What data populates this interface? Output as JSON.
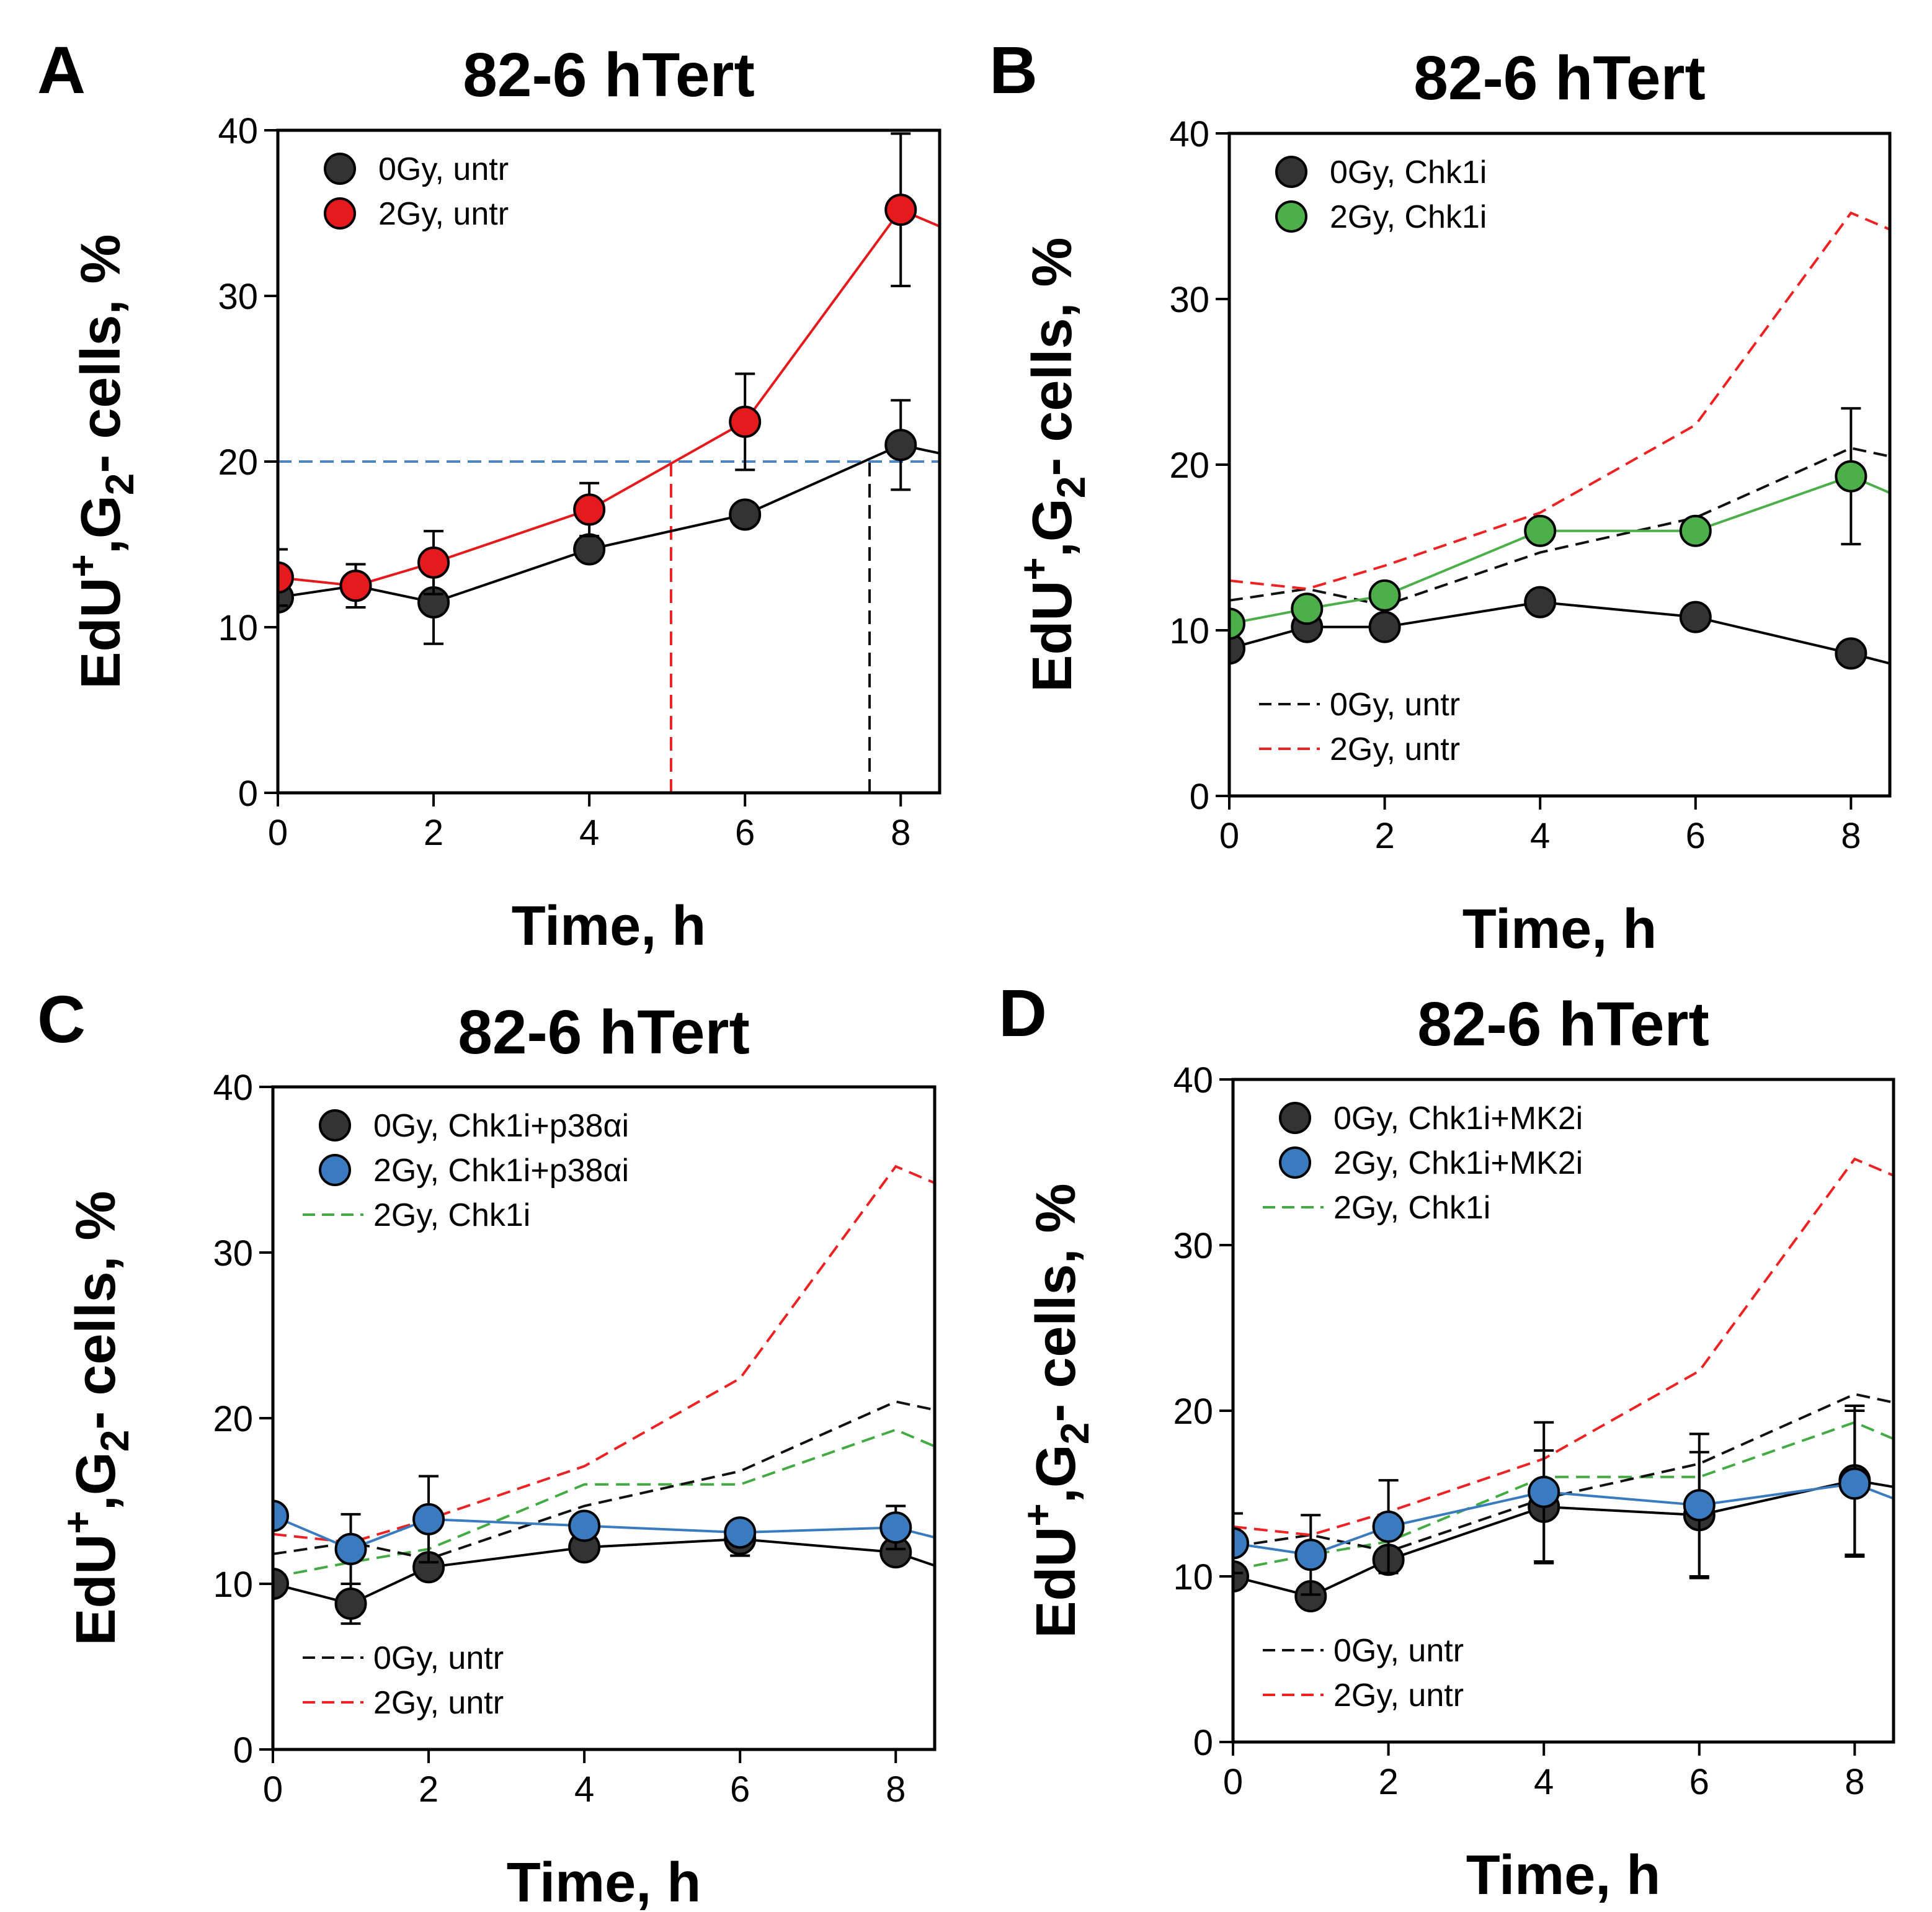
{
  "figure": {
    "colors": {
      "black_marker": "#333333",
      "red": "#e41a1c",
      "green": "#4daf4a",
      "blue": "#3a7bbf",
      "ref_black": "#111111",
      "ref_red": "#ee2222",
      "ref_green": "#44aa44",
      "guide_blue": "#4a86c5"
    }
  },
  "chart_data": [
    {
      "panel": "A",
      "type": "line",
      "title": "82-6 hTert",
      "xlabel": "Time, h",
      "ylabel_parts": [
        "EdU",
        "+",
        ",G",
        "2",
        "- cells, %"
      ],
      "xlim": [
        0,
        8.5
      ],
      "ylim": [
        0,
        40
      ],
      "xticks": [
        0,
        2,
        4,
        6,
        8
      ],
      "yticks": [
        0,
        10,
        20,
        30,
        40
      ],
      "series": [
        {
          "name": "0Gy, untr",
          "style": "marker",
          "color": "#333333",
          "x": [
            0,
            1,
            2,
            4,
            6,
            8
          ],
          "y": [
            11.8,
            12.5,
            11.5,
            14.7,
            16.8,
            21.0
          ],
          "err": [
            0,
            0,
            2.5,
            0,
            0,
            2.7
          ],
          "tail": 20.5
        },
        {
          "name": "2Gy, untr",
          "style": "marker",
          "color": "#e41a1c",
          "x": [
            0,
            1,
            2,
            4,
            6,
            8
          ],
          "y": [
            13.0,
            12.5,
            13.9,
            17.1,
            22.4,
            35.2
          ],
          "err": [
            1.7,
            1.3,
            1.9,
            1.6,
            2.9,
            4.6
          ],
          "tail": 34.2
        }
      ],
      "guides": [
        {
          "kind": "h",
          "y": 20,
          "x0": 0,
          "x1": 8.5,
          "color": "#4a86c5"
        },
        {
          "kind": "v",
          "x": 5.05,
          "y0": 0,
          "y1": 20,
          "color": "#ee2222"
        },
        {
          "kind": "v",
          "x": 7.6,
          "y0": 0,
          "y1": 20,
          "color": "#111111"
        }
      ],
      "legend_upper": [
        "0Gy, untr",
        "2Gy, untr"
      ],
      "legend_upper_loc": "top-left"
    },
    {
      "panel": "B",
      "type": "line",
      "title": "82-6 hTert",
      "xlabel": "Time, h",
      "ylabel_parts": [
        "EdU",
        "+",
        ",G",
        "2",
        "- cells, %"
      ],
      "xlim": [
        0,
        8.5
      ],
      "ylim": [
        0,
        40
      ],
      "xticks": [
        0,
        2,
        4,
        6,
        8
      ],
      "yticks": [
        0,
        10,
        20,
        30,
        40
      ],
      "series": [
        {
          "name": "0Gy, Chk1i",
          "style": "marker",
          "color": "#333333",
          "x": [
            0,
            1,
            2,
            4,
            6,
            8
          ],
          "y": [
            8.9,
            10.2,
            10.2,
            11.7,
            10.8,
            8.6
          ],
          "err": [
            0,
            0,
            0,
            0,
            0,
            0
          ],
          "tail": 8.0
        },
        {
          "name": "2Gy, Chk1i",
          "style": "marker",
          "color": "#4daf4a",
          "x": [
            0,
            1,
            2,
            4,
            6,
            8
          ],
          "y": [
            10.4,
            11.3,
            12.1,
            16.0,
            16.0,
            19.3
          ],
          "err": [
            0,
            0,
            0,
            0,
            0,
            4.1
          ],
          "tail": 18.3
        },
        {
          "name": "0Gy, untr",
          "style": "dashed",
          "color": "#111111",
          "x": [
            0,
            1,
            2,
            4,
            6,
            8
          ],
          "y": [
            11.8,
            12.5,
            11.5,
            14.7,
            16.8,
            21.0
          ],
          "tail": 20.5
        },
        {
          "name": "2Gy, untr",
          "style": "dashed",
          "color": "#ee2222",
          "x": [
            0,
            1,
            2,
            4,
            6,
            8
          ],
          "y": [
            13.0,
            12.5,
            13.9,
            17.1,
            22.4,
            35.2
          ],
          "tail": 34.2
        }
      ],
      "legend_upper": [
        "0Gy, Chk1i",
        "2Gy, Chk1i"
      ],
      "legend_upper_loc": "top-left",
      "legend_lower": [
        "0Gy, untr",
        "2Gy, untr"
      ],
      "legend_lower_loc": "bottom-left"
    },
    {
      "panel": "C",
      "type": "line",
      "title": "82-6 hTert",
      "xlabel": "Time, h",
      "ylabel_parts": [
        "EdU",
        "+",
        ",G",
        "2",
        "- cells, %"
      ],
      "xlim": [
        0,
        8.5
      ],
      "ylim": [
        0,
        40
      ],
      "xticks": [
        0,
        2,
        4,
        6,
        8
      ],
      "yticks": [
        0,
        10,
        20,
        30,
        40
      ],
      "series": [
        {
          "name": "0Gy, Chk1i+p38αi",
          "style": "marker",
          "color": "#333333",
          "x": [
            0,
            1,
            2,
            4,
            6,
            8
          ],
          "y": [
            10.0,
            8.8,
            11.0,
            12.2,
            12.7,
            11.9
          ],
          "err": [
            0,
            1.2,
            0,
            0,
            1.0,
            0
          ],
          "tail": 11.1
        },
        {
          "name": "2Gy, Chk1i+p38αi",
          "style": "marker",
          "color": "#3a7bbf",
          "x": [
            0,
            1,
            2,
            4,
            6,
            8
          ],
          "y": [
            14.1,
            12.1,
            13.9,
            13.5,
            13.1,
            13.4
          ],
          "err": [
            0,
            2.1,
            2.6,
            0,
            0,
            1.3
          ],
          "tail": 12.8
        },
        {
          "name": "2Gy, Chk1i",
          "style": "dashed",
          "color": "#44aa44",
          "x": [
            0,
            1,
            2,
            4,
            6,
            8
          ],
          "y": [
            10.4,
            11.3,
            12.1,
            16.0,
            16.0,
            19.3
          ],
          "tail": 18.3
        },
        {
          "name": "0Gy, untr",
          "style": "dashed",
          "color": "#111111",
          "x": [
            0,
            1,
            2,
            4,
            6,
            8
          ],
          "y": [
            11.8,
            12.5,
            11.5,
            14.7,
            16.8,
            21.0
          ],
          "tail": 20.5
        },
        {
          "name": "2Gy, untr",
          "style": "dashed",
          "color": "#ee2222",
          "x": [
            0,
            1,
            2,
            4,
            6,
            8
          ],
          "y": [
            13.0,
            12.5,
            13.9,
            17.1,
            22.4,
            35.2
          ],
          "tail": 34.2
        }
      ],
      "legend_upper": [
        "0Gy, Chk1i+p38αi",
        "2Gy, Chk1i+p38αi",
        "2Gy, Chk1i"
      ],
      "legend_upper_loc": "top-left",
      "legend_lower": [
        "0Gy, untr",
        "2Gy, untr"
      ],
      "legend_lower_loc": "bottom-left"
    },
    {
      "panel": "D",
      "type": "line",
      "title": "82-6 hTert",
      "xlabel": "Time, h",
      "ylabel_parts": [
        "EdU",
        "+",
        ",G",
        "2",
        "- cells, %"
      ],
      "xlim": [
        0,
        8.5
      ],
      "ylim": [
        0,
        40
      ],
      "xticks": [
        0,
        2,
        4,
        6,
        8
      ],
      "yticks": [
        0,
        10,
        20,
        30,
        40
      ],
      "series": [
        {
          "name": "0Gy, Chk1i+MK2i",
          "style": "marker",
          "color": "#333333",
          "x": [
            0,
            1,
            2,
            4,
            6,
            8
          ],
          "y": [
            10.0,
            8.8,
            11.0,
            14.2,
            13.7,
            15.8
          ],
          "err": [
            0,
            0,
            0,
            3.4,
            3.8,
            4.5
          ],
          "tail": 15.4
        },
        {
          "name": "2Gy, Chk1i+MK2i",
          "style": "marker",
          "color": "#3a7bbf",
          "x": [
            0,
            1,
            2,
            4,
            6,
            8
          ],
          "y": [
            12.0,
            11.3,
            13.0,
            15.1,
            14.3,
            15.6
          ],
          "err": [
            1.8,
            2.4,
            2.8,
            4.2,
            4.3,
            4.4
          ],
          "tail": 14.7
        },
        {
          "name": "2Gy, Chk1i",
          "style": "dashed",
          "color": "#44aa44",
          "x": [
            0,
            1,
            2,
            4,
            6,
            8
          ],
          "y": [
            10.4,
            11.3,
            12.1,
            16.0,
            16.0,
            19.3
          ],
          "tail": 18.3
        },
        {
          "name": "0Gy, untr",
          "style": "dashed",
          "color": "#111111",
          "x": [
            0,
            1,
            2,
            4,
            6,
            8
          ],
          "y": [
            11.8,
            12.5,
            11.5,
            14.7,
            16.8,
            21.0
          ],
          "tail": 20.5
        },
        {
          "name": "2Gy, untr",
          "style": "dashed",
          "color": "#ee2222",
          "x": [
            0,
            1,
            2,
            4,
            6,
            8
          ],
          "y": [
            13.0,
            12.5,
            13.9,
            17.1,
            22.4,
            35.2
          ],
          "tail": 34.2
        }
      ],
      "legend_upper": [
        "0Gy, Chk1i+MK2i",
        "2Gy, Chk1i+MK2i",
        "2Gy, Chk1i"
      ],
      "legend_upper_loc": "top-left",
      "legend_lower": [
        "0Gy, untr",
        "2Gy, untr"
      ],
      "legend_lower_loc": "bottom-left"
    }
  ]
}
